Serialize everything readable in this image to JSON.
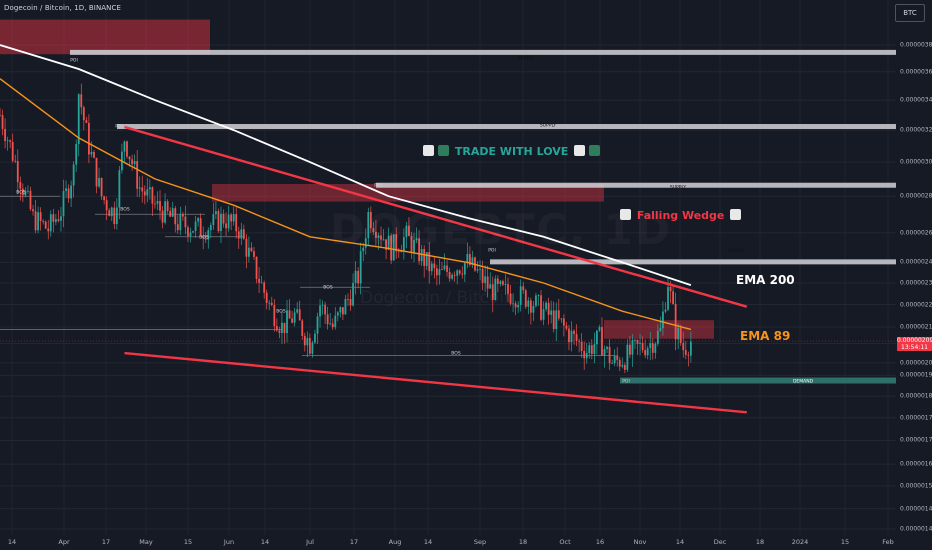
{
  "header": {
    "symbol_line": "Dogecoin / Bitcoin, 1D, BINANCE",
    "currency_button": "BTC"
  },
  "watermark": {
    "ticker": "DOGEBTC, 1D",
    "name": "Dogecoin / Bitcoin"
  },
  "price_tag": {
    "price": "0.00000209",
    "countdown": "13:54:11"
  },
  "colors": {
    "bull": "#26a69a",
    "bear": "#ef5350",
    "ema200": "#ffffff",
    "ema89": "#f7931a",
    "wedge": "#f23645",
    "accent_text": "#26a69a"
  },
  "annotations": {
    "trade_with_love": "TRADE WITH LOVE",
    "falling_wedge": "Falling Wedge",
    "ema200_label": "EMA 200",
    "ema89_label": "EMA 89",
    "supply": "SUPPLY",
    "demand": "DEMAND",
    "bos": "BOS",
    "poi": "POI"
  },
  "chart_data": {
    "type": "candlestick",
    "title": "Dogecoin / Bitcoin, 1D, BINANCE",
    "y_axis": {
      "ticks": [
        "0.00000380",
        "0.00000360",
        "0.00000340",
        "0.00000320",
        "0.00000300",
        "0.00000280",
        "0.00000260",
        "0.00000245",
        "0.00000235",
        "0.00000225",
        "0.00000215",
        "0.00000208",
        "0.00000200",
        "0.00000195",
        "0.00000187",
        "0.00000179",
        "0.00000171",
        "0.00000163",
        "0.00000156",
        "0.00000149",
        "0.00000143"
      ],
      "scale": "log",
      "range": [
        1.43e-06,
        4e-06
      ]
    },
    "x_axis": {
      "ticks": [
        "14",
        "Apr",
        "17",
        "May",
        "15",
        "Jun",
        "14",
        "Jul",
        "17",
        "Aug",
        "14",
        "Sep",
        "18",
        "Oct",
        "16",
        "Nov",
        "14",
        "Dec",
        "18",
        "2024",
        "15",
        "Feb"
      ]
    },
    "close_path": [
      [
        "2023-03-01",
        3.3e-06
      ],
      [
        "2023-03-05",
        3.1e-06
      ],
      [
        "2023-03-10",
        2.85e-06
      ],
      [
        "2023-03-14",
        2.68e-06
      ],
      [
        "2023-03-20",
        2.62e-06
      ],
      [
        "2023-03-25",
        2.72e-06
      ],
      [
        "2023-03-30",
        2.95e-06
      ],
      [
        "2023-04-01",
        3.45e-06
      ],
      [
        "2023-04-05",
        3.1e-06
      ],
      [
        "2023-04-10",
        2.8e-06
      ],
      [
        "2023-04-15",
        2.7e-06
      ],
      [
        "2023-04-19",
        3.15e-06
      ],
      [
        "2023-04-25",
        2.85e-06
      ],
      [
        "2023-05-01",
        2.75e-06
      ],
      [
        "2023-05-10",
        2.65e-06
      ],
      [
        "2023-05-20",
        2.62e-06
      ],
      [
        "2023-05-28",
        2.68e-06
      ],
      [
        "2023-06-03",
        2.62e-06
      ],
      [
        "2023-06-10",
        2.4e-06
      ],
      [
        "2023-06-15",
        2.25e-06
      ],
      [
        "2023-06-20",
        2.15e-06
      ],
      [
        "2023-06-25",
        2.2e-06
      ],
      [
        "2023-07-01",
        2.08e-06
      ],
      [
        "2023-07-05",
        2.25e-06
      ],
      [
        "2023-07-10",
        2.15e-06
      ],
      [
        "2023-07-15",
        2.25e-06
      ],
      [
        "2023-07-20",
        2.38e-06
      ],
      [
        "2023-07-24",
        2.7e-06
      ],
      [
        "2023-07-28",
        2.62e-06
      ],
      [
        "2023-08-02",
        2.52e-06
      ],
      [
        "2023-08-08",
        2.58e-06
      ],
      [
        "2023-08-14",
        2.48e-06
      ],
      [
        "2023-08-20",
        2.38e-06
      ],
      [
        "2023-08-26",
        2.42e-06
      ],
      [
        "2023-09-01",
        2.45e-06
      ],
      [
        "2023-09-05",
        2.4e-06
      ],
      [
        "2023-09-10",
        2.32e-06
      ],
      [
        "2023-09-18",
        2.3e-06
      ],
      [
        "2023-09-25",
        2.28e-06
      ],
      [
        "2023-10-01",
        2.22e-06
      ],
      [
        "2023-10-08",
        2.16e-06
      ],
      [
        "2023-10-13",
        2.1e-06
      ],
      [
        "2023-10-18",
        2.05e-06
      ],
      [
        "2023-10-23",
        2.1e-06
      ],
      [
        "2023-10-28",
        2e-06
      ],
      [
        "2023-11-02",
        2.02e-06
      ],
      [
        "2023-11-07",
        2.06e-06
      ],
      [
        "2023-11-12",
        2.08e-06
      ],
      [
        "2023-11-16",
        2.13e-06
      ],
      [
        "2023-11-19",
        2.36e-06
      ],
      [
        "2023-11-22",
        2.14e-06
      ],
      [
        "2023-11-25",
        2.06e-06
      ],
      [
        "2023-11-28",
        2.09e-06
      ]
    ],
    "ema200": [
      [
        "2023-03-01",
        3.8e-06
      ],
      [
        "2023-04-01",
        3.62e-06
      ],
      [
        "2023-05-01",
        3.4e-06
      ],
      [
        "2023-06-01",
        3.2e-06
      ],
      [
        "2023-07-01",
        3e-06
      ],
      [
        "2023-08-01",
        2.8e-06
      ],
      [
        "2023-09-01",
        2.68e-06
      ],
      [
        "2023-10-01",
        2.58e-06
      ],
      [
        "2023-11-01",
        2.45e-06
      ],
      [
        "2023-11-28",
        2.34e-06
      ]
    ],
    "ema89": [
      [
        "2023-03-01",
        3.55e-06
      ],
      [
        "2023-04-01",
        3.15e-06
      ],
      [
        "2023-05-01",
        2.9e-06
      ],
      [
        "2023-06-01",
        2.75e-06
      ],
      [
        "2023-07-01",
        2.58e-06
      ],
      [
        "2023-08-01",
        2.52e-06
      ],
      [
        "2023-09-01",
        2.45e-06
      ],
      [
        "2023-10-01",
        2.35e-06
      ],
      [
        "2023-11-01",
        2.22e-06
      ],
      [
        "2023-11-28",
        2.14e-06
      ]
    ],
    "wedge_upper": [
      [
        "2023-04-19",
        3.22e-06
      ],
      [
        "2023-12-20",
        2.24e-06
      ]
    ],
    "wedge_lower": [
      [
        "2023-04-19",
        2.04e-06
      ],
      [
        "2023-12-20",
        1.81e-06
      ]
    ],
    "supply_zones": [
      3.74e-06,
      3.22e-06,
      2.86e-06,
      2.45e-06
    ],
    "demand_zone": 1.93e-06,
    "current_price": 2.09e-06,
    "grid": true
  }
}
